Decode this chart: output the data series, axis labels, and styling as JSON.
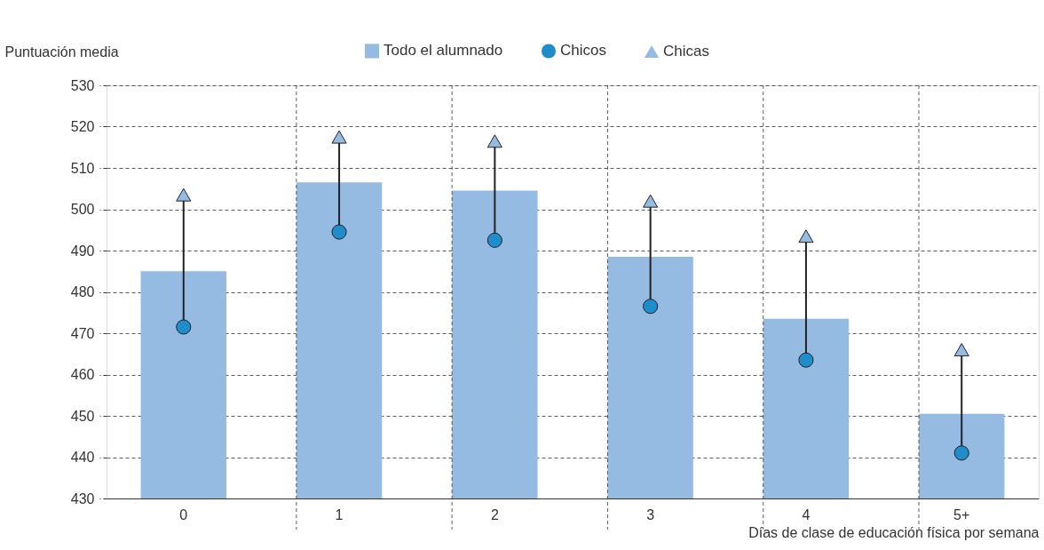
{
  "chart_data": {
    "type": "bar",
    "xlabel": "Días de clase de educación física por semana",
    "ylabel": "Puntuación media",
    "categories": [
      "0",
      "1",
      "2",
      "3",
      "4",
      "5+"
    ],
    "series": [
      {
        "name": "Todo el alumnado",
        "color": "#95bbe3",
        "values": [
          485,
          506.5,
          504.5,
          488.5,
          473.5,
          450.5
        ]
      },
      {
        "name": "Chicos",
        "type": "scatter",
        "marker": "circle",
        "color": "#1f8dc9",
        "values": [
          471.5,
          494.5,
          492.5,
          476.5,
          463.5,
          441
        ]
      },
      {
        "name": "Chicas",
        "type": "scatter",
        "marker": "triangle",
        "color": "#95bbe3",
        "values": [
          503.5,
          517.5,
          516.5,
          502,
          493.5,
          466
        ]
      }
    ],
    "ylim": [
      430,
      530
    ],
    "yticks": [
      430,
      440,
      450,
      460,
      470,
      480,
      490,
      500,
      510,
      520,
      530
    ],
    "grid": true,
    "legend": "top"
  }
}
